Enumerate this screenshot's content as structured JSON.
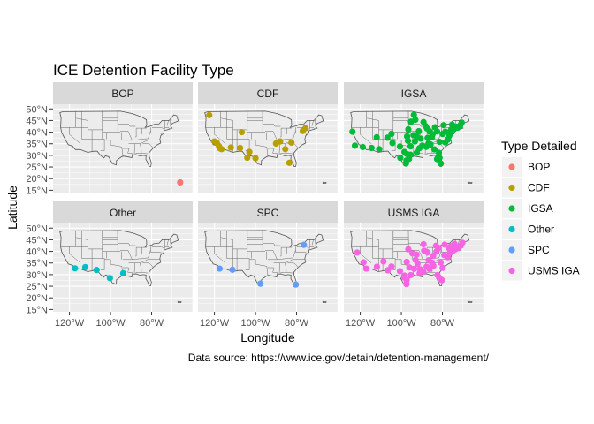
{
  "chart_data": {
    "type": "scatter",
    "title": "ICE Detention Facility Type",
    "xlabel": "Longitude",
    "ylabel": "Latitude",
    "caption": "Data source: https://www.ice.gov/detain/detention-management/",
    "xlim": [
      -128,
      -60
    ],
    "ylim": [
      14,
      52
    ],
    "x_ticks": [
      -120,
      -100,
      -80
    ],
    "x_tick_labels": [
      "120°W",
      "100°W",
      "80°W"
    ],
    "y_ticks": [
      15,
      20,
      25,
      30,
      35,
      40,
      45,
      50
    ],
    "y_tick_labels": [
      "15°N",
      "20°N",
      "25°N",
      "30°N",
      "35°N",
      "40°N",
      "45°N",
      "50°N"
    ],
    "grid": true,
    "legend": {
      "title": "Type Detailed",
      "placement": "right",
      "entries": [
        {
          "label": "BOP",
          "color": "#F8766D"
        },
        {
          "label": "CDF",
          "color": "#B79F00"
        },
        {
          "label": "IGSA",
          "color": "#00BA38"
        },
        {
          "label": "Other",
          "color": "#00BFC4"
        },
        {
          "label": "SPC",
          "color": "#619CFF"
        },
        {
          "label": "USMS IGA",
          "color": "#F564E3"
        }
      ]
    },
    "panels": [
      {
        "name": "BOP",
        "color": "#F8766D",
        "points": [
          [
            -66.1,
            18.4
          ]
        ]
      },
      {
        "name": "CDF",
        "color": "#B79F00",
        "points": [
          [
            -122.5,
            47.3
          ],
          [
            -120,
            36
          ],
          [
            -118.8,
            35.3
          ],
          [
            -117.8,
            34
          ],
          [
            -117.3,
            33
          ],
          [
            -116.5,
            32.7
          ],
          [
            -112,
            33.4
          ],
          [
            -107.5,
            33.2
          ],
          [
            -106.7,
            40
          ],
          [
            -104,
            29
          ],
          [
            -103,
            31.5
          ],
          [
            -100,
            28.8
          ],
          [
            -90,
            35.1
          ],
          [
            -88,
            36
          ],
          [
            -85.5,
            32.7
          ],
          [
            -83.5,
            26.8
          ],
          [
            -82.5,
            35.5
          ],
          [
            -77,
            40.5
          ],
          [
            -75.7,
            41.7
          ]
        ]
      },
      {
        "name": "IGSA",
        "color": "#00BA38",
        "points": [
          [
            -123.8,
            40.2
          ],
          [
            -122.6,
            34.2
          ],
          [
            -118.8,
            33.6
          ],
          [
            -114.5,
            33.2
          ],
          [
            -110.8,
            32.7
          ],
          [
            -112,
            37.8
          ],
          [
            -106.8,
            37.6
          ],
          [
            -104.3,
            35.3
          ],
          [
            -104.8,
            39.3
          ],
          [
            -98.5,
            31.5
          ],
          [
            -97.5,
            27.8
          ],
          [
            -97.8,
            26.5
          ],
          [
            -100.5,
            28.9
          ],
          [
            -97.3,
            30.6
          ],
          [
            -95.6,
            30.3
          ],
          [
            -95.5,
            33.9
          ],
          [
            -96.8,
            36.3
          ],
          [
            -97.2,
            38.2
          ],
          [
            -96.6,
            41.2
          ],
          [
            -95.3,
            44.5
          ],
          [
            -93.9,
            47.4
          ],
          [
            -93.2,
            45.3
          ],
          [
            -91.5,
            40.4
          ],
          [
            -92.4,
            38.1
          ],
          [
            -93.4,
            36
          ],
          [
            -91.2,
            33.1
          ],
          [
            -92.5,
            31.2
          ],
          [
            -89.8,
            34.2
          ],
          [
            -87.9,
            33.7
          ],
          [
            -86.8,
            35.1
          ],
          [
            -85.8,
            34.7
          ],
          [
            -85.1,
            37.8
          ],
          [
            -88.2,
            42.6
          ],
          [
            -89.2,
            44.3
          ],
          [
            -87.5,
            41.6
          ],
          [
            -86.1,
            40.2
          ],
          [
            -83.6,
            42.1
          ],
          [
            -82.6,
            40.3
          ],
          [
            -81.4,
            35.8
          ],
          [
            -82.6,
            28.4
          ],
          [
            -81.4,
            28.9
          ],
          [
            -80.8,
            26.5
          ],
          [
            -81.7,
            31.1
          ],
          [
            -83.9,
            32.6
          ],
          [
            -79.9,
            39.2
          ],
          [
            -77.4,
            36.8
          ],
          [
            -76.6,
            38.6
          ],
          [
            -75.8,
            40.9
          ],
          [
            -74.4,
            41.3
          ],
          [
            -72.6,
            41.9
          ],
          [
            -71.4,
            42.8
          ],
          [
            -70.6,
            44.1
          ],
          [
            -76.1,
            39.9
          ],
          [
            -78.6,
            40.2
          ],
          [
            -75.3,
            43.2
          ],
          [
            -94.1,
            38.7
          ],
          [
            -90.6,
            37.2
          ],
          [
            -87.2,
            37.5
          ],
          [
            -96.3,
            28.5
          ],
          [
            -100.7,
            33.8
          ],
          [
            -84.8,
            39.1
          ],
          [
            -79.4,
            43
          ],
          [
            -73.1,
            42.3
          ],
          [
            -78.6,
            35.6
          ]
        ]
      },
      {
        "name": "Other",
        "color": "#00BFC4",
        "points": [
          [
            -117.3,
            32.7
          ],
          [
            -112.3,
            33.2
          ],
          [
            -106.8,
            32
          ],
          [
            -100.3,
            28.5
          ],
          [
            -93.8,
            30.6
          ]
        ]
      },
      {
        "name": "SPC",
        "color": "#619CFF",
        "points": [
          [
            -117.5,
            32.6
          ],
          [
            -111.2,
            32.1
          ],
          [
            -97.6,
            26.1
          ],
          [
            -80.4,
            25.7
          ],
          [
            -76.5,
            42.8
          ]
        ]
      },
      {
        "name": "USMS IGA",
        "color": "#F564E3",
        "points": [
          [
            -121.5,
            39.5
          ],
          [
            -118.4,
            35.3
          ],
          [
            -117.1,
            32.6
          ],
          [
            -111.9,
            33.4
          ],
          [
            -108.7,
            35.7
          ],
          [
            -106.6,
            31.9
          ],
          [
            -104.8,
            33.5
          ],
          [
            -100.7,
            31.5
          ],
          [
            -98.5,
            29.6
          ],
          [
            -97.4,
            27.7
          ],
          [
            -97.5,
            25.9
          ],
          [
            -98.6,
            28.8
          ],
          [
            -95.4,
            29.8
          ],
          [
            -96.1,
            33.1
          ],
          [
            -97.4,
            35.5
          ],
          [
            -94.6,
            39.1
          ],
          [
            -96.6,
            40.9
          ],
          [
            -92.6,
            38.6
          ],
          [
            -93.1,
            36.3
          ],
          [
            -92.1,
            34.7
          ],
          [
            -90.9,
            32.3
          ],
          [
            -89.3,
            31.2
          ],
          [
            -87.7,
            33.4
          ],
          [
            -86.3,
            32.4
          ],
          [
            -85.1,
            35.2
          ],
          [
            -86.7,
            36.2
          ],
          [
            -84.5,
            38.1
          ],
          [
            -87.3,
            39.6
          ],
          [
            -88.9,
            40.3
          ],
          [
            -89.2,
            43.1
          ],
          [
            -83.1,
            42.4
          ],
          [
            -81.9,
            41.4
          ],
          [
            -82.9,
            39.9
          ],
          [
            -80.9,
            35.2
          ],
          [
            -79.1,
            38.4
          ],
          [
            -77.4,
            37.5
          ],
          [
            -76.3,
            39.5
          ],
          [
            -75.1,
            40.1
          ],
          [
            -73.9,
            40.8
          ],
          [
            -72.2,
            41.4
          ],
          [
            -71.2,
            42.4
          ],
          [
            -70.3,
            43.7
          ],
          [
            -84.4,
            33.8
          ],
          [
            -82.4,
            29.8
          ],
          [
            -81.4,
            28.6
          ],
          [
            -80.3,
            27.6
          ],
          [
            -79.9,
            32.9
          ],
          [
            -93.8,
            32.5
          ],
          [
            -91.1,
            30.5
          ],
          [
            -75.9,
            42.2
          ],
          [
            -78.9,
            42.9
          ],
          [
            -74.1,
            43.2
          ],
          [
            -76.6,
            41.2
          ]
        ]
      }
    ]
  }
}
